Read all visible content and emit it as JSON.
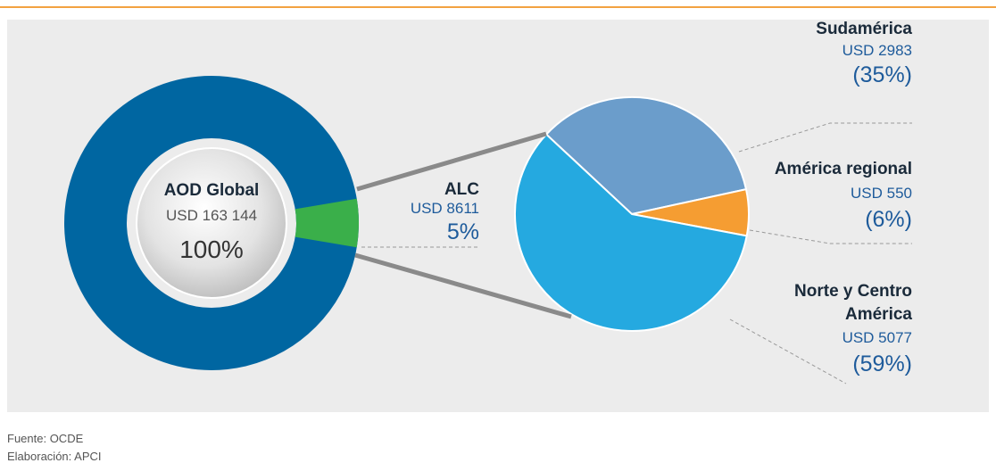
{
  "chart_data": [
    {
      "type": "donut",
      "title": "AOD Global",
      "total": 163144,
      "total_label": "USD 163 144",
      "total_percent": 100,
      "total_percent_label": "100%",
      "total_color": "#0066a1",
      "categories": [
        "ALC"
      ],
      "values": [
        8611
      ],
      "value_labels": [
        "USD 8611"
      ],
      "percents": [
        5
      ],
      "percent_labels": [
        "5%"
      ],
      "colors": [
        "#3aaf4a"
      ]
    },
    {
      "type": "pie",
      "categories": [
        "Sudamérica",
        "América regional",
        "Norte y Centro América"
      ],
      "values": [
        2983,
        550,
        5077
      ],
      "value_labels": [
        "USD 2983",
        "USD 550",
        "USD 5077"
      ],
      "percents": [
        35,
        6,
        59
      ],
      "percent_labels": [
        "(35%)",
        "(6%)",
        "(59%)"
      ],
      "colors": [
        "#6b9dcb",
        "#f59d32",
        "#25a9e0"
      ]
    }
  ],
  "footer": {
    "source": "Fuente: OCDE",
    "credit": "Elaboración: APCI"
  }
}
